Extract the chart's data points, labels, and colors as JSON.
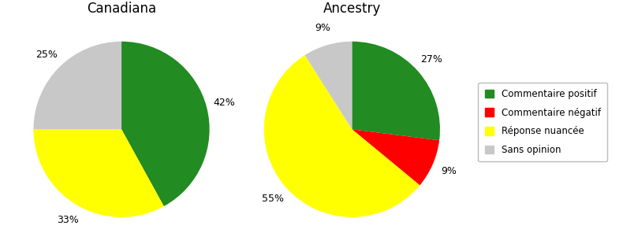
{
  "chart1_title": "Canadiana",
  "chart2_title": "Ancestry",
  "categories": [
    "Commentaire positif",
    "Commentaire négatif",
    "Réponse nuancée",
    "Sans opinion"
  ],
  "colors": [
    "#228B22",
    "#FF0000",
    "#FFFF00",
    "#C8C8C8"
  ],
  "canadiana_values": [
    42,
    0,
    33,
    25
  ],
  "ancestry_values": [
    27,
    9,
    55,
    9
  ],
  "canadiana_labels": [
    "42%",
    "",
    "33%",
    "25%"
  ],
  "ancestry_labels": [
    "27%",
    "9%",
    "55%",
    "9%"
  ],
  "legend_labels": [
    "Commentaire positif",
    "Commentaire négatif",
    "Réponse nuancée",
    "Sans opinion"
  ],
  "background_color": "#ffffff",
  "label_fontsize": 9,
  "title_fontsize": 12
}
